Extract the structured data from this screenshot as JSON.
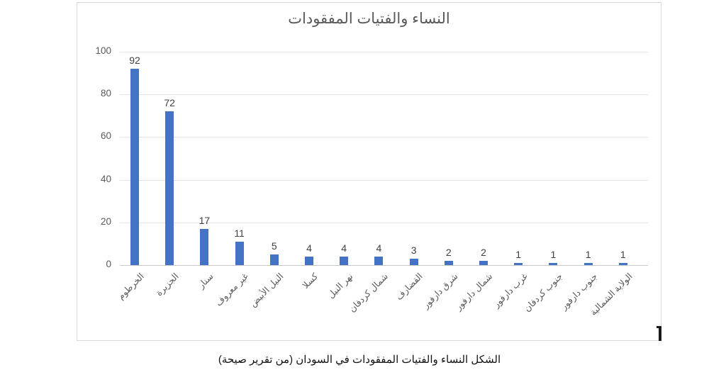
{
  "chart_data": {
    "type": "bar",
    "title": "النساء والفتيات المفقودات",
    "categories": [
      "الخرطوم",
      "الجزيرة",
      "سنار",
      "غير معروف",
      "النيل الأبيض",
      "كسلا",
      "نهر النيل",
      "شمال كردفان",
      "القضارف",
      "شرق دارفور",
      "شمال دارفور",
      "غرب دارفور",
      "جنوب كردفان",
      "جنوب دارفور",
      "الولاية الشمالية"
    ],
    "values": [
      92,
      72,
      17,
      11,
      5,
      4,
      4,
      4,
      3,
      2,
      2,
      1,
      1,
      1,
      1
    ],
    "xlabel": "",
    "ylabel": "",
    "ylim": [
      0,
      100
    ],
    "yticks": [
      0,
      20,
      40,
      60,
      80,
      100
    ],
    "grid": true,
    "legend": null,
    "bar_color": "#4472c4",
    "gridline_color": "#e4e4e4",
    "axis_line_color": "#c9c9c9",
    "label_color": "#595959",
    "data_label_color": "#404040"
  },
  "caption": "الشكل النساء والفتيات المفقودات في السودان (من تقرير صيحة)"
}
